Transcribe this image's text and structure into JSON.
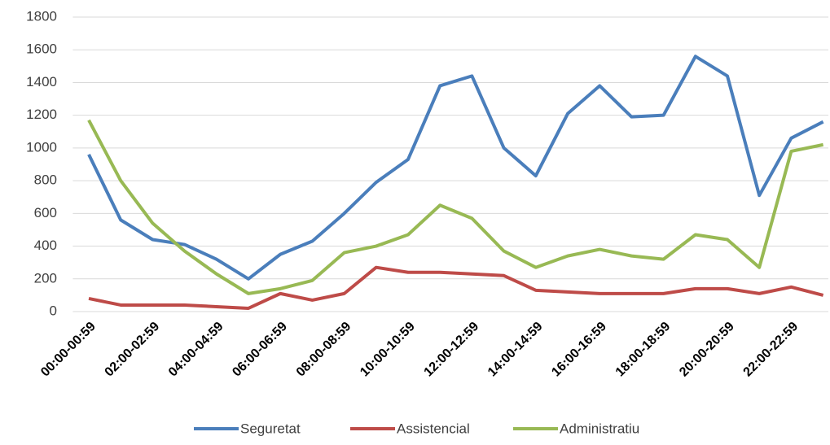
{
  "chart_data": {
    "type": "line",
    "categories": [
      "00:00-00:59",
      null,
      "02:00-02:59",
      null,
      "04:00-04:59",
      null,
      "06:00-06:59",
      null,
      "08:00-08:59",
      null,
      "10:00-10:59",
      null,
      "12:00-12:59",
      null,
      "14:00-14:59",
      null,
      "16:00-16:59",
      null,
      "18:00-18:59",
      null,
      "20:00-20:59",
      null,
      "22:00-22:59",
      null
    ],
    "series": [
      {
        "name": "Seguretat",
        "color": "#4a7ebb",
        "values": [
          960,
          560,
          440,
          410,
          320,
          200,
          350,
          430,
          600,
          790,
          930,
          1380,
          1440,
          1000,
          830,
          1210,
          1380,
          1190,
          1200,
          1560,
          1440,
          710,
          1060,
          1160
        ]
      },
      {
        "name": "Assistencial",
        "color": "#be4b48",
        "values": [
          80,
          40,
          40,
          40,
          30,
          20,
          110,
          70,
          110,
          270,
          240,
          240,
          230,
          220,
          130,
          120,
          110,
          110,
          110,
          140,
          140,
          110,
          150,
          100
        ]
      },
      {
        "name": "Administratiu",
        "color": "#98b954",
        "values": [
          1170,
          800,
          540,
          370,
          230,
          110,
          140,
          190,
          360,
          400,
          470,
          650,
          570,
          370,
          270,
          340,
          380,
          340,
          320,
          470,
          440,
          270,
          980,
          1020
        ]
      }
    ],
    "ylim": [
      0,
      1800
    ],
    "yticks": [
      0,
      200,
      400,
      600,
      800,
      1000,
      1200,
      1400,
      1600,
      1800
    ],
    "grid": true,
    "legend": "bottom"
  }
}
